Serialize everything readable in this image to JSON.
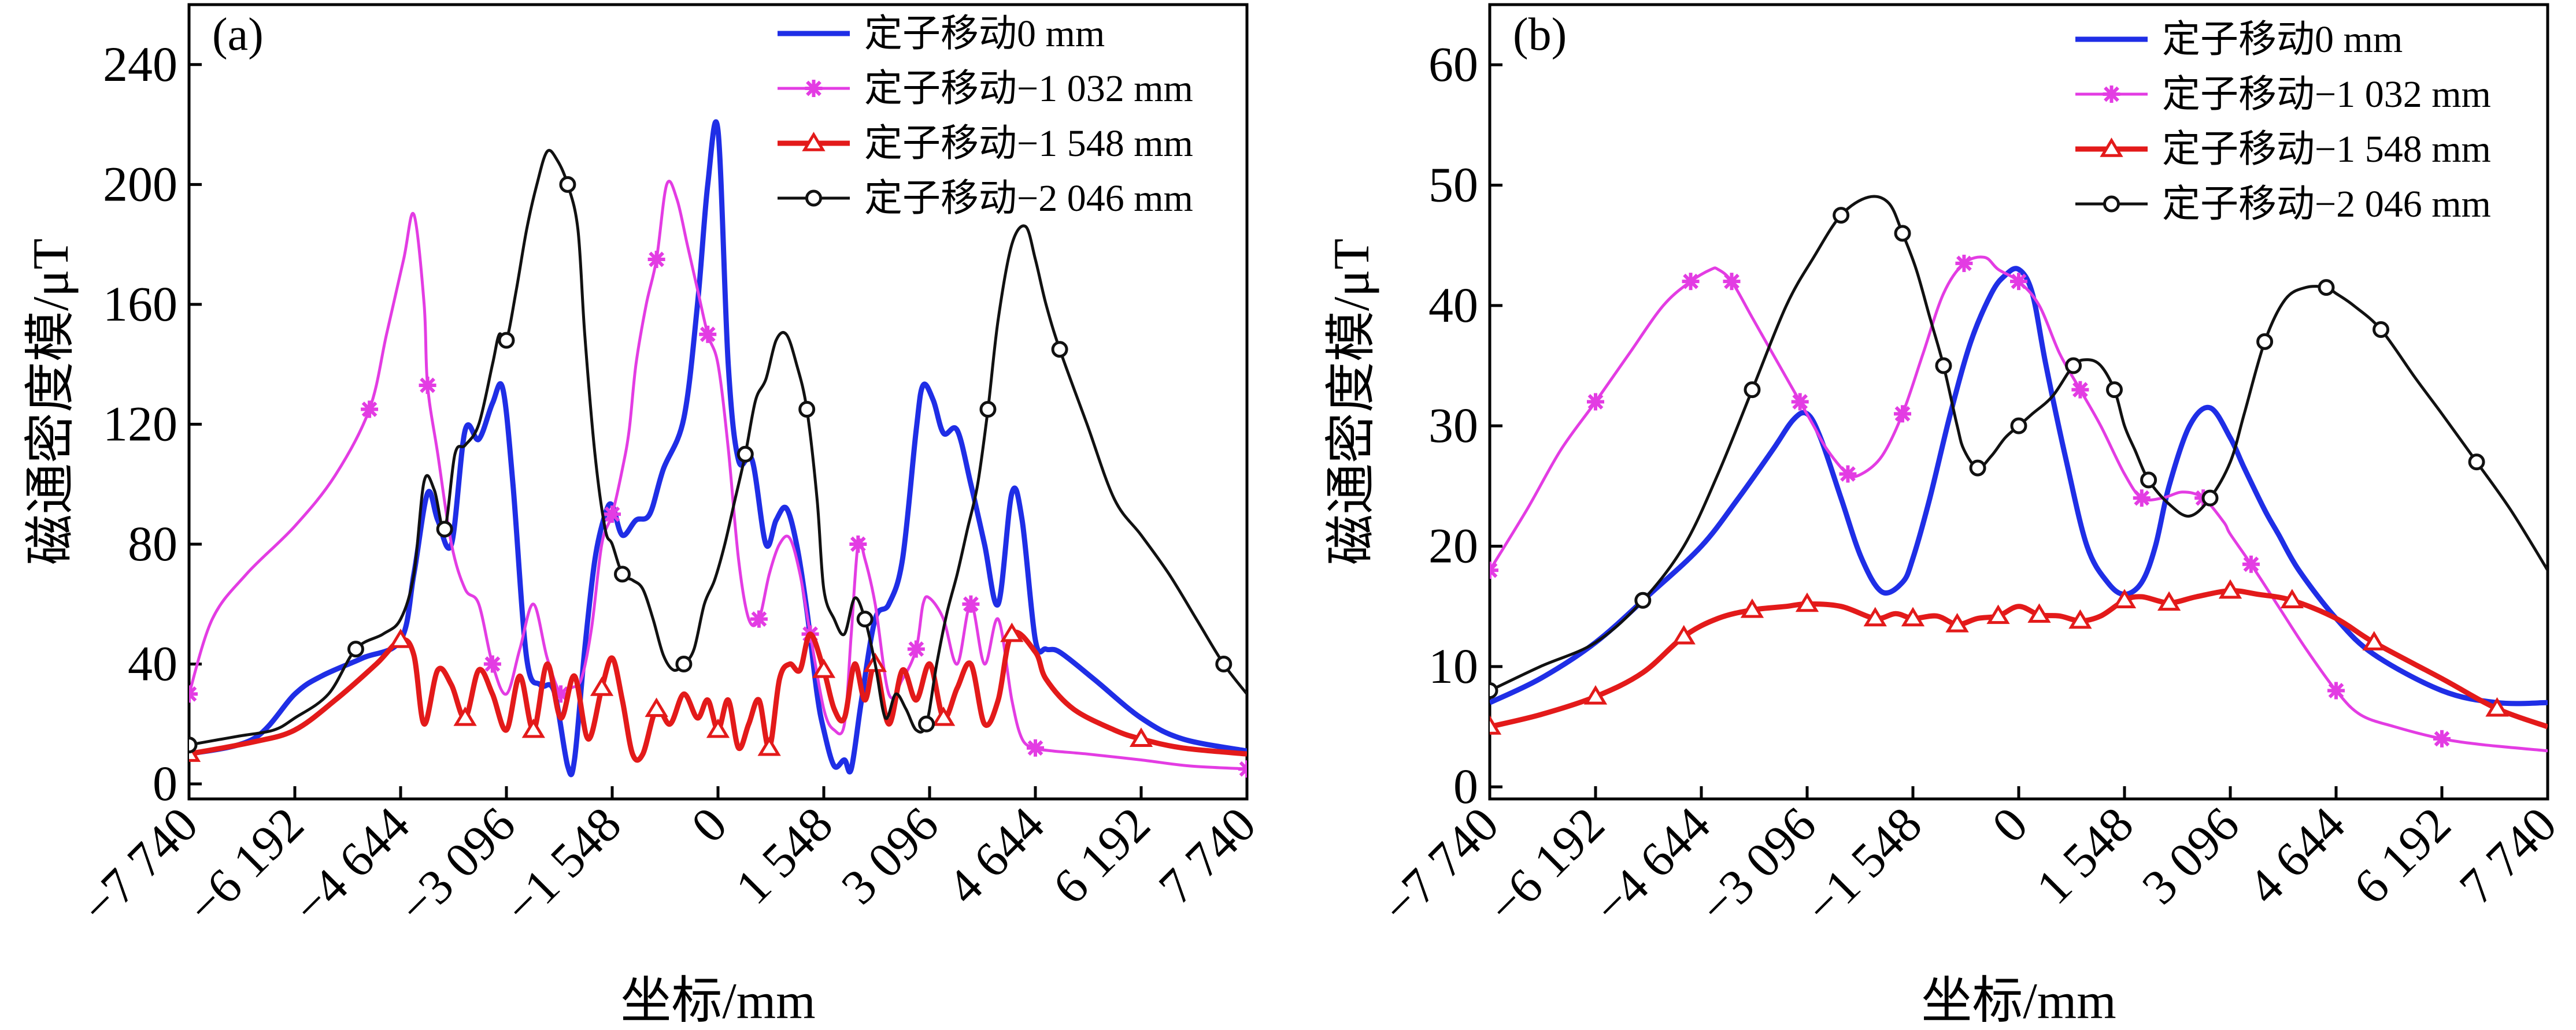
{
  "chart_data": [
    {
      "type": "line",
      "panel_label": "(a)",
      "xlabel": "坐标/mm",
      "ylabel": "磁通密度模/μT",
      "xlim": [
        -7740,
        7740
      ],
      "ylim": [
        -5,
        260
      ],
      "xticks": [
        -7740,
        -6192,
        -4644,
        -3096,
        -1548,
        0,
        1548,
        3096,
        4644,
        6192,
        7740
      ],
      "xtick_labels": [
        "−7 740",
        "−6 192",
        "−4 644",
        "−3 096",
        "−1 548",
        "0",
        "1 548",
        "3 096",
        "4 644",
        "6 192",
        "7 740"
      ],
      "yticks": [
        0,
        40,
        80,
        120,
        160,
        200,
        240
      ],
      "ytick_labels": [
        "0",
        "40",
        "80",
        "120",
        "160",
        "200",
        "240"
      ],
      "legend_position": "top-right",
      "series": [
        {
          "name": "定子移动0 mm",
          "color": "#1f2ee6",
          "width": 9,
          "marker": "none",
          "x": [
            -7740,
            -6800,
            -6192,
            -5800,
            -5200,
            -4644,
            -4450,
            -4250,
            -4100,
            -3900,
            -3700,
            -3500,
            -3300,
            -3150,
            -3000,
            -2800,
            -2600,
            -2400,
            -2200,
            -2100,
            -1950,
            -1800,
            -1650,
            -1548,
            -1400,
            -1200,
            -1000,
            -800,
            -500,
            -300,
            -150,
            0,
            150,
            300,
            500,
            700,
            850,
            1000,
            1150,
            1300,
            1450,
            1548,
            1700,
            1850,
            1950,
            2100,
            2300,
            2500,
            2700,
            2900,
            3000,
            3150,
            3300,
            3500,
            3700,
            3900,
            4100,
            4300,
            4450,
            4644,
            4800,
            5000,
            5500,
            6192,
            6800,
            7740
          ],
          "y": [
            10,
            15,
            30,
            36,
            42,
            48,
            70,
            97,
            88,
            80,
            118,
            115,
            127,
            132,
            100,
            42,
            33,
            31,
            6,
            8,
            45,
            75,
            90,
            93,
            83,
            88,
            90,
            105,
            122,
            160,
            200,
            218,
            140,
            108,
            108,
            80,
            88,
            92,
            80,
            58,
            30,
            18,
            6,
            8,
            5,
            28,
            55,
            60,
            75,
            118,
            133,
            128,
            117,
            118,
            100,
            80,
            60,
            97,
            88,
            48,
            45,
            44,
            35,
            22,
            15,
            11
          ]
        },
        {
          "name": "定子移动−1 032 mm",
          "color": "#e33ce3",
          "width": 5,
          "marker": "asterisk",
          "x": [
            -7740,
            -7400,
            -6900,
            -6192,
            -5600,
            -5100,
            -4850,
            -4600,
            -4450,
            -4300,
            -4250,
            -4100,
            -3900,
            -3700,
            -3500,
            -3300,
            -3096,
            -2900,
            -2700,
            -2500,
            -2300,
            -2150,
            -2000,
            -1850,
            -1700,
            -1548,
            -1400,
            -1300,
            -1200,
            -1050,
            -900,
            -750,
            -600,
            -450,
            -300,
            -150,
            0,
            150,
            300,
            450,
            600,
            750,
            900,
            1050,
            1200,
            1350,
            1548,
            1700,
            1850,
            1950,
            2050,
            2150,
            2300,
            2500,
            2700,
            2900,
            3000,
            3096,
            3300,
            3500,
            3700,
            3900,
            4100,
            4300,
            4450,
            4644,
            4900,
            5400,
            6192,
            6900,
            7740
          ],
          "y": [
            30,
            55,
            70,
            86,
            103,
            125,
            150,
            175,
            190,
            160,
            133,
            110,
            80,
            65,
            60,
            40,
            30,
            45,
            60,
            42,
            30,
            32,
            35,
            52,
            80,
            90,
            105,
            118,
            140,
            160,
            175,
            200,
            195,
            180,
            165,
            150,
            140,
            112,
            75,
            55,
            55,
            70,
            80,
            82,
            70,
            50,
            25,
            18,
            20,
            50,
            80,
            75,
            60,
            30,
            35,
            45,
            60,
            62,
            55,
            40,
            60,
            40,
            55,
            28,
            15,
            12,
            11,
            10,
            8,
            6,
            5
          ]
        },
        {
          "name": "定子移动−1 548 mm",
          "color": "#e31a1a",
          "width": 9,
          "marker": "triangle",
          "x": [
            -7740,
            -6800,
            -6192,
            -5600,
            -5000,
            -4644,
            -4450,
            -4300,
            -4100,
            -3900,
            -3700,
            -3500,
            -3300,
            -3096,
            -2900,
            -2700,
            -2500,
            -2300,
            -2100,
            -1900,
            -1700,
            -1548,
            -1400,
            -1250,
            -1100,
            -900,
            -700,
            -500,
            -300,
            -150,
            0,
            150,
            300,
            450,
            600,
            750,
            900,
            1050,
            1200,
            1350,
            1548,
            1700,
            1850,
            2000,
            2150,
            2300,
            2500,
            2700,
            2900,
            3100,
            3300,
            3500,
            3700,
            3900,
            4100,
            4300,
            4644,
            4800,
            5200,
            5800,
            6192,
            6800,
            7740
          ],
          "y": [
            10,
            14,
            18,
            28,
            40,
            48,
            43,
            20,
            38,
            33,
            22,
            38,
            30,
            18,
            36,
            18,
            40,
            22,
            36,
            15,
            32,
            42,
            28,
            10,
            10,
            25,
            20,
            30,
            22,
            28,
            18,
            28,
            12,
            20,
            28,
            12,
            35,
            40,
            38,
            50,
            38,
            25,
            22,
            40,
            28,
            40,
            20,
            38,
            28,
            40,
            22,
            32,
            40,
            20,
            28,
            50,
            44,
            35,
            25,
            18,
            15,
            12,
            10
          ]
        },
        {
          "name": "定子移动−2 046 mm",
          "color": "#111111",
          "width": 5,
          "marker": "circle",
          "x": [
            -7740,
            -7500,
            -7000,
            -6500,
            -6192,
            -5700,
            -5300,
            -4900,
            -4644,
            -4450,
            -4300,
            -4150,
            -4000,
            -3850,
            -3700,
            -3500,
            -3300,
            -3200,
            -3096,
            -2950,
            -2800,
            -2650,
            -2500,
            -2350,
            -2200,
            -2050,
            -1950,
            -1800,
            -1650,
            -1548,
            -1400,
            -1250,
            -1100,
            -950,
            -800,
            -650,
            -500,
            -350,
            -200,
            -50,
            100,
            250,
            400,
            550,
            700,
            850,
            1000,
            1150,
            1300,
            1450,
            1548,
            1700,
            1850,
            2000,
            2150,
            2300,
            2450,
            2600,
            2750,
            2900,
            3050,
            3200,
            3350,
            3500,
            3650,
            3800,
            3950,
            4100,
            4300,
            4500,
            4644,
            4800,
            5000,
            5400,
            5800,
            6192,
            6600,
            7000,
            7400,
            7740
          ],
          "y": [
            13,
            14,
            16,
            18,
            22,
            30,
            45,
            50,
            55,
            70,
            101,
            98,
            85,
            110,
            113,
            120,
            140,
            150,
            148,
            165,
            185,
            200,
            211,
            208,
            200,
            185,
            150,
            110,
            85,
            80,
            70,
            68,
            65,
            55,
            43,
            38,
            40,
            45,
            60,
            68,
            80,
            95,
            110,
            128,
            135,
            148,
            150,
            140,
            125,
            95,
            65,
            55,
            50,
            62,
            55,
            40,
            22,
            30,
            25,
            18,
            20,
            40,
            57,
            70,
            85,
            100,
            125,
            155,
            180,
            186,
            175,
            160,
            145,
            120,
            95,
            83,
            70,
            55,
            40,
            30
          ]
        }
      ]
    },
    {
      "type": "line",
      "panel_label": "(b)",
      "xlabel": "坐标/mm",
      "ylabel": "磁通密度模/μT",
      "xlim": [
        -7740,
        7740
      ],
      "ylim": [
        -1,
        65
      ],
      "xticks": [
        -7740,
        -6192,
        -4644,
        -3096,
        -1548,
        0,
        1548,
        3096,
        4644,
        6192,
        7740
      ],
      "xtick_labels": [
        "−7 740",
        "−6 192",
        "−4 644",
        "−3 096",
        "−1 548",
        "0",
        "1 548",
        "3 096",
        "4 644",
        "6 192",
        "7 740"
      ],
      "yticks": [
        0,
        10,
        20,
        30,
        40,
        50,
        60
      ],
      "ytick_labels": [
        "0",
        "10",
        "20",
        "30",
        "40",
        "50",
        "60"
      ],
      "legend_position": "top-right",
      "series": [
        {
          "name": "定子移动0 mm",
          "color": "#1f2ee6",
          "width": 9,
          "marker": "none",
          "x": [
            -7740,
            -7000,
            -6192,
            -5400,
            -4644,
            -4100,
            -3600,
            -3300,
            -3096,
            -2900,
            -2600,
            -2300,
            -2000,
            -1700,
            -1548,
            -1300,
            -1000,
            -700,
            -400,
            -200,
            0,
            200,
            400,
            700,
            1000,
            1300,
            1548,
            1800,
            2000,
            2200,
            2500,
            2800,
            3096,
            3300,
            3600,
            3800,
            4100,
            4644,
            5200,
            6192,
            7000,
            7740
          ],
          "y": [
            7,
            9,
            12,
            16,
            20,
            24,
            28,
            30.5,
            31,
            29,
            24,
            19,
            16.2,
            17,
            19,
            24,
            31,
            37,
            41,
            42.5,
            43,
            41,
            35,
            27,
            20,
            17,
            16,
            17,
            20,
            25,
            30,
            31.5,
            29,
            26.5,
            23,
            21,
            18,
            14,
            11,
            8,
            7,
            7
          ]
        },
        {
          "name": "定子移动−1 032 mm",
          "color": "#e33ce3",
          "width": 5,
          "marker": "asterisk",
          "x": [
            -7740,
            -7200,
            -6700,
            -6192,
            -5700,
            -5200,
            -4800,
            -4500,
            -4400,
            -4200,
            -3900,
            -3500,
            -3200,
            -3000,
            -2800,
            -2500,
            -2300,
            -2000,
            -1700,
            -1400,
            -1100,
            -800,
            -500,
            -300,
            0,
            300,
            600,
            900,
            1200,
            1548,
            1800,
            2100,
            2400,
            2700,
            3000,
            3096,
            3400,
            3800,
            4200,
            4644,
            5000,
            5500,
            6192,
            6800,
            7740
          ],
          "y": [
            18,
            23,
            28,
            32,
            36,
            40,
            42,
            43,
            43,
            42,
            39,
            35,
            32,
            30,
            28,
            26,
            26,
            27.5,
            31,
            36,
            41,
            43.5,
            44,
            43,
            42,
            40,
            36,
            33,
            30,
            26,
            24,
            24,
            24.5,
            24,
            22,
            21,
            18.5,
            15,
            11.5,
            8,
            6,
            5,
            4,
            3.5,
            3
          ]
        },
        {
          "name": "定子移动−1 548 mm",
          "color": "#e31a1a",
          "width": 9,
          "marker": "triangle",
          "x": [
            -7740,
            -7000,
            -6192,
            -5500,
            -4900,
            -4400,
            -3900,
            -3400,
            -3096,
            -2600,
            -2100,
            -1800,
            -1548,
            -1200,
            -900,
            -600,
            -300,
            0,
            300,
            600,
            900,
            1200,
            1548,
            1800,
            2200,
            2600,
            3096,
            3500,
            4000,
            4644,
            5200,
            6192,
            7000,
            7740
          ],
          "y": [
            5,
            6,
            7.5,
            9.5,
            12.5,
            14,
            14.7,
            15,
            15.2,
            15,
            14,
            14.4,
            14,
            14.2,
            13.5,
            14,
            14.2,
            15,
            14.3,
            14.2,
            13.8,
            14.2,
            15.5,
            15.8,
            15.3,
            15.8,
            16.3,
            16,
            15.5,
            14,
            12,
            9,
            6.5,
            5
          ]
        },
        {
          "name": "定子移动−2 046 mm",
          "color": "#111111",
          "width": 5,
          "marker": "circle",
          "x": [
            -7740,
            -7000,
            -6192,
            -5500,
            -4900,
            -4400,
            -3900,
            -3400,
            -3000,
            -2600,
            -2200,
            -1900,
            -1700,
            -1500,
            -1300,
            -1100,
            -900,
            -800,
            -600,
            -400,
            -200,
            0,
            200,
            500,
            800,
            1000,
            1200,
            1400,
            1548,
            1700,
            1900,
            2200,
            2500,
            2800,
            3096,
            3300,
            3600,
            3900,
            4200,
            4500,
            4644,
            4900,
            5300,
            5800,
            6192,
            6700,
            7200,
            7740
          ],
          "y": [
            8,
            10,
            12,
            15.5,
            20,
            26,
            33,
            40,
            44,
            47.5,
            49,
            48.5,
            46,
            43,
            39,
            35,
            30,
            28,
            26.5,
            27.5,
            29,
            30,
            31,
            32.5,
            35,
            35.5,
            35,
            33,
            30,
            28,
            25.5,
            23.5,
            22.5,
            24,
            27,
            31,
            37,
            40.5,
            41.5,
            41.5,
            41,
            40,
            38,
            34,
            31,
            27,
            23,
            18
          ]
        }
      ]
    }
  ]
}
